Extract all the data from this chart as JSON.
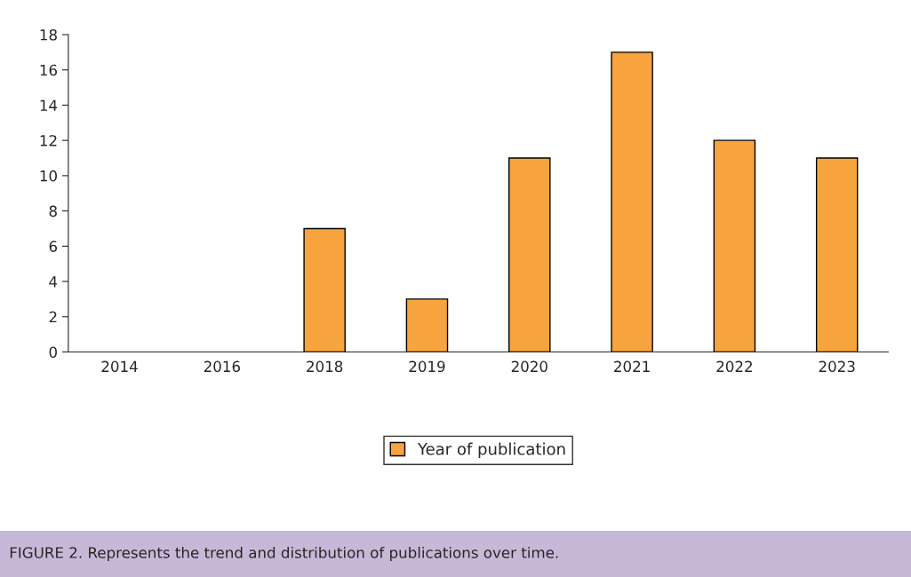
{
  "chart_data": {
    "type": "bar",
    "categories": [
      "2014",
      "2016",
      "2018",
      "2019",
      "2020",
      "2021",
      "2022",
      "2023"
    ],
    "series": [
      {
        "name": "Year of publication",
        "color": "#f7a43e",
        "values": [
          0,
          0,
          7,
          3,
          11,
          17,
          12,
          11
        ]
      }
    ],
    "ylim": [
      0,
      18
    ],
    "yticks": [
      0,
      2,
      4,
      6,
      8,
      10,
      12,
      14,
      16,
      18
    ],
    "grid": false,
    "legend": "bottom",
    "annotations": [
      "FIGURE 2. Represents the trend and distribution of publications over time."
    ]
  }
}
